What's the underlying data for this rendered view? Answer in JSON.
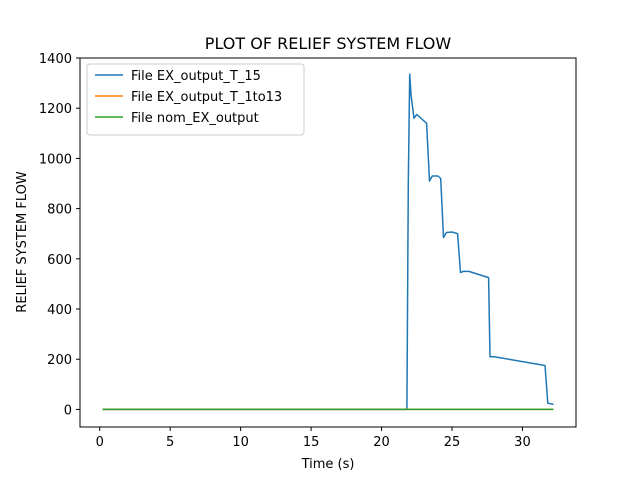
{
  "chart_data": {
    "type": "line",
    "title": "PLOT OF RELIEF SYSTEM FLOW",
    "xlabel": "Time (s)",
    "ylabel": "RELIEF SYSTEM FLOW",
    "xlim": [
      -1.4,
      33.8
    ],
    "ylim": [
      -70,
      1400
    ],
    "xticks": [
      0,
      5,
      10,
      15,
      20,
      25,
      30
    ],
    "yticks": [
      0,
      200,
      400,
      600,
      800,
      1000,
      1200,
      1400
    ],
    "grid": false,
    "legend_position": "top-left",
    "series": [
      {
        "name": "File EX_output_T_15",
        "color": "#1f77b4",
        "x": [
          0.2,
          21.8,
          21.9,
          22.0,
          22.1,
          22.3,
          22.5,
          23.2,
          23.4,
          23.6,
          24.0,
          24.2,
          24.4,
          24.6,
          25.0,
          25.4,
          25.6,
          25.8,
          26.2,
          27.6,
          27.7,
          28.0,
          31.6,
          31.8,
          32.2
        ],
        "y": [
          0,
          0,
          900,
          1335,
          1250,
          1160,
          1175,
          1140,
          910,
          930,
          930,
          920,
          685,
          705,
          707,
          700,
          545,
          550,
          550,
          525,
          210,
          210,
          175,
          25,
          20
        ]
      },
      {
        "name": "File EX_output_T_1to13",
        "color": "#ff7f0e",
        "x": [
          0.2,
          32.2
        ],
        "y": [
          0,
          0
        ]
      },
      {
        "name": "File nom_EX_output",
        "color": "#2ca02c",
        "x": [
          0.2,
          32.2
        ],
        "y": [
          0,
          0
        ]
      }
    ]
  }
}
